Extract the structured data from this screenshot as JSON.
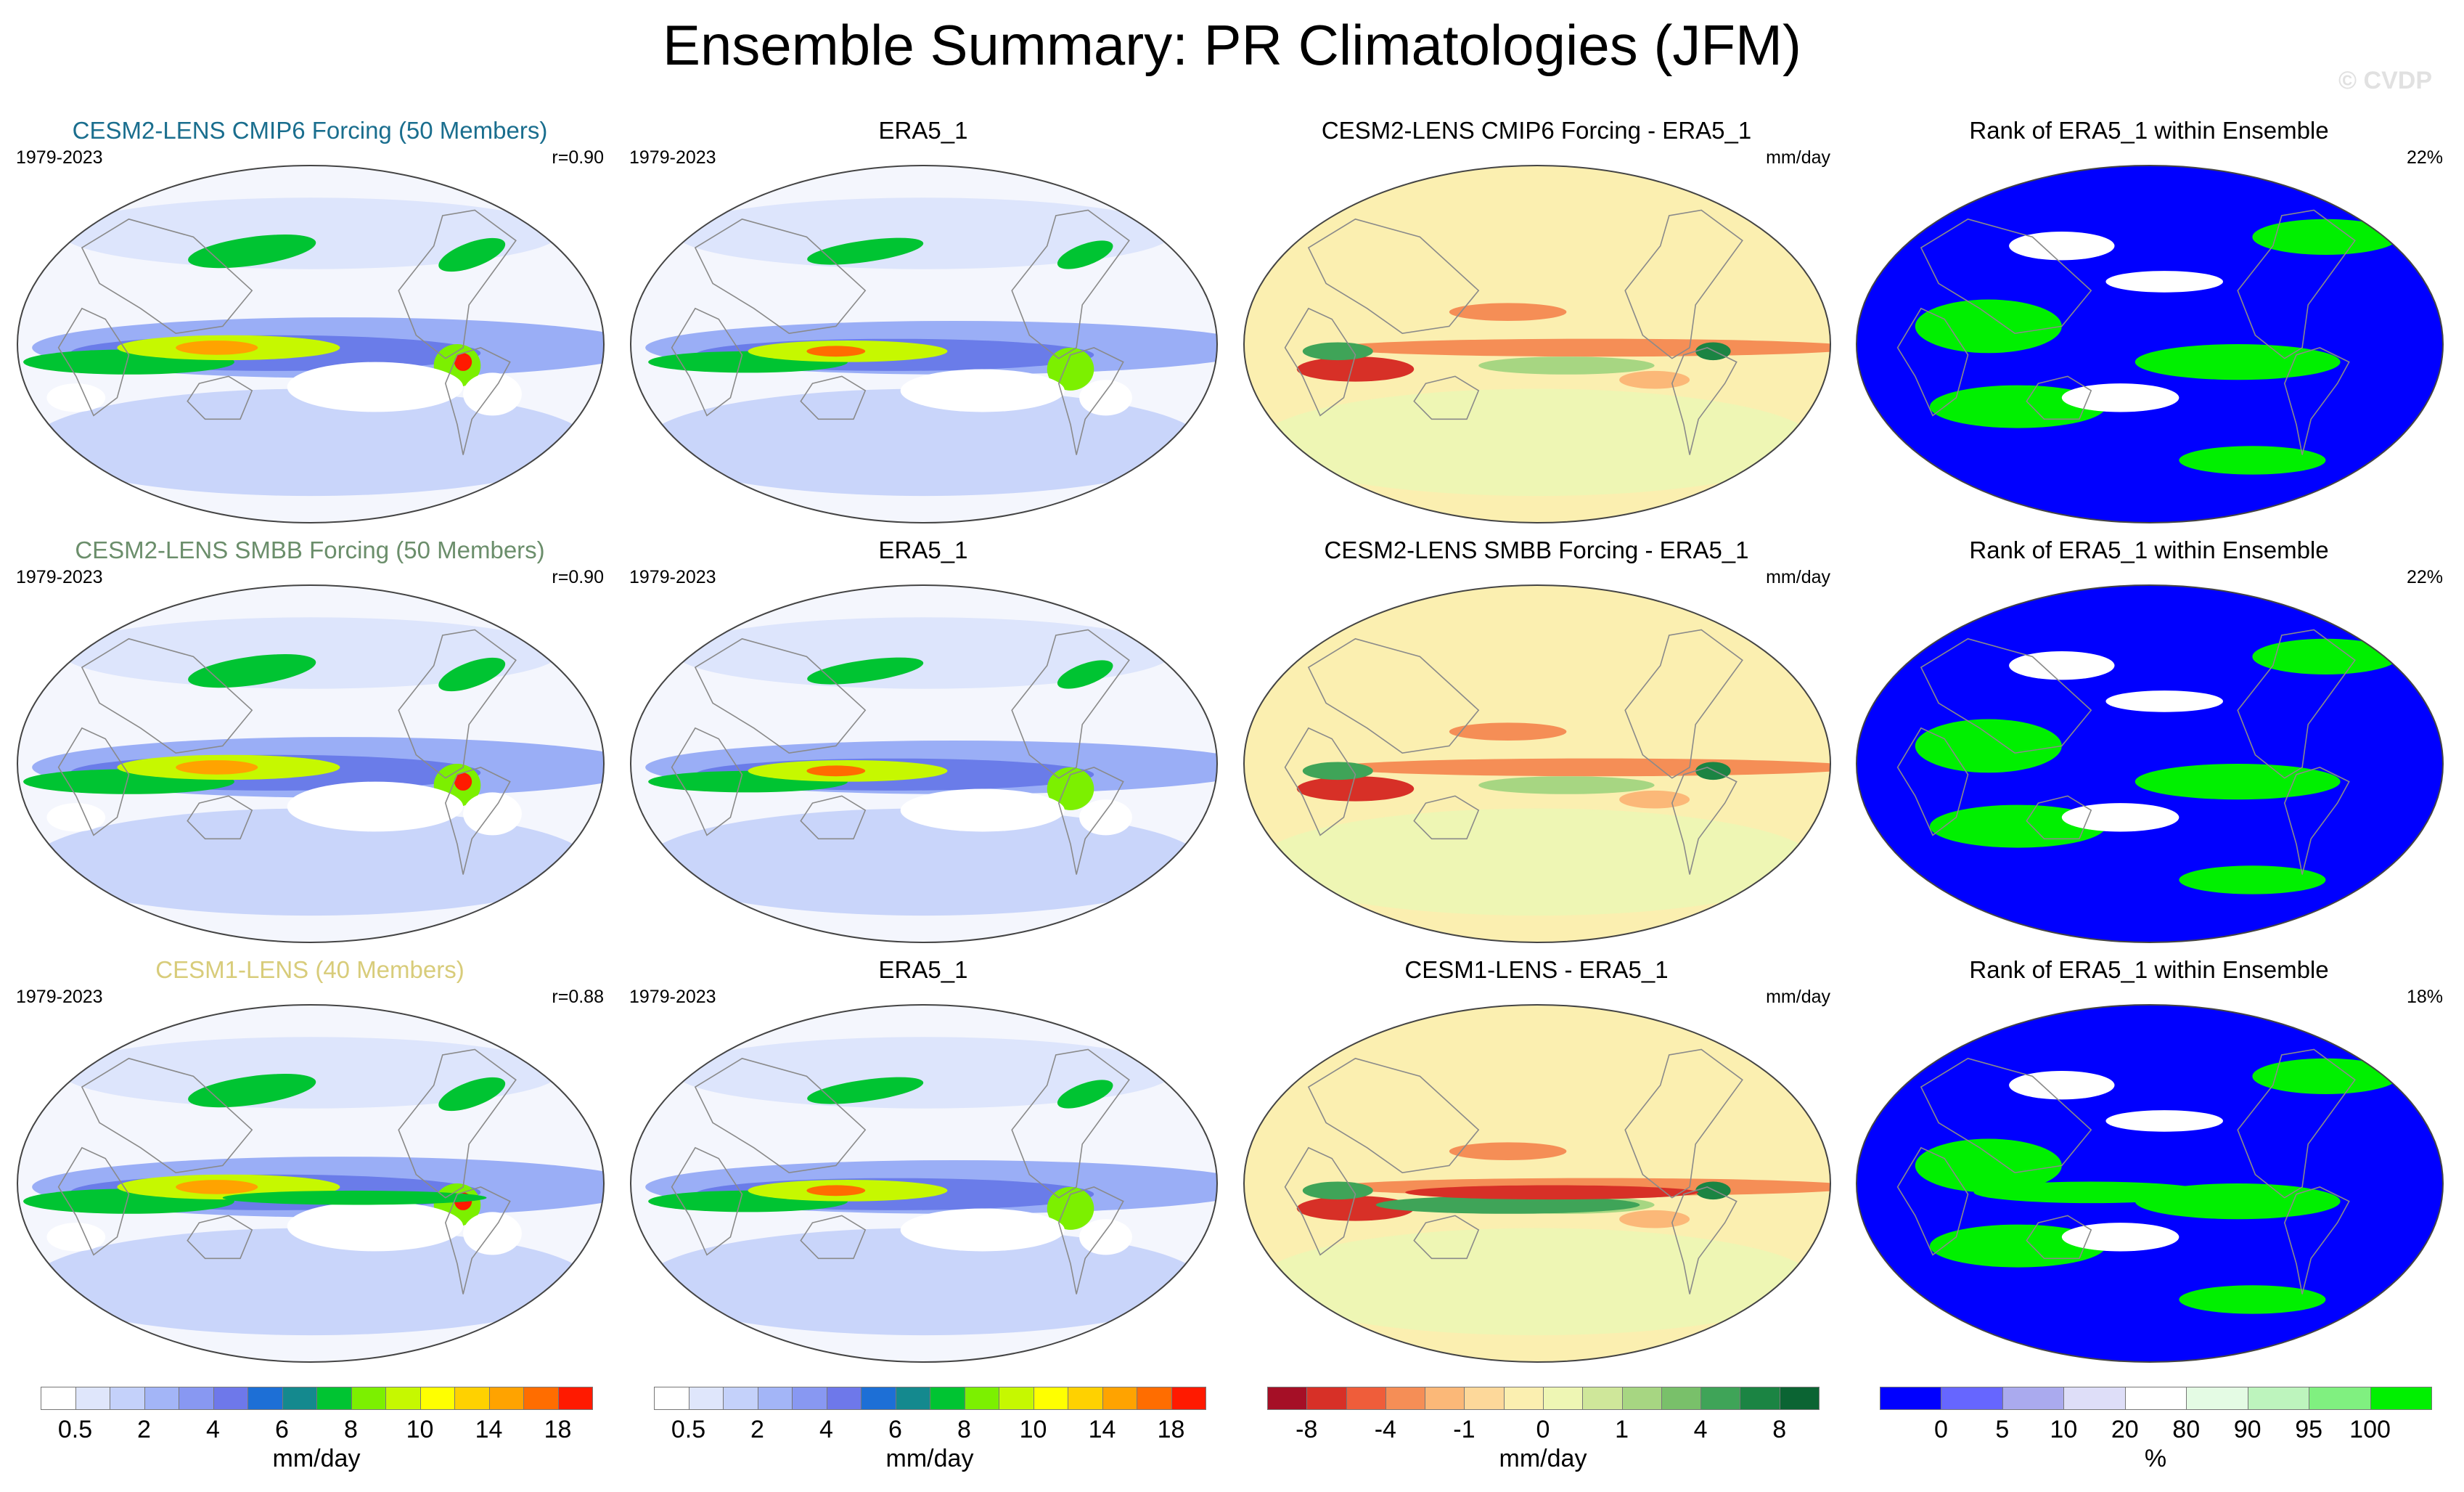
{
  "page": {
    "title": "Ensemble Summary: PR Climatologies (JFM)",
    "watermark": "© CVDP"
  },
  "chart_data": [
    {
      "type": "heatmap",
      "panel_kind": "model",
      "title": "CESM2-LENS CMIP6 Forcing (50 Members)",
      "title_color": "#1a6e8e",
      "period": "1979-2023",
      "stat": "r=0.90"
    },
    {
      "type": "heatmap",
      "panel_kind": "obs",
      "title": "ERA5_1",
      "title_color": "#000000",
      "period": "1979-2023",
      "stat": ""
    },
    {
      "type": "heatmap",
      "panel_kind": "diff",
      "title": "CESM2-LENS CMIP6 Forcing - ERA5_1",
      "title_color": "#000000",
      "period": "",
      "stat": "mm/day"
    },
    {
      "type": "heatmap",
      "panel_kind": "rank",
      "title": "Rank of ERA5_1 within Ensemble",
      "title_color": "#000000",
      "period": "",
      "stat": "22%"
    },
    {
      "type": "heatmap",
      "panel_kind": "model",
      "title": "CESM2-LENS SMBB Forcing (50 Members)",
      "title_color": "#6b8e6b",
      "period": "1979-2023",
      "stat": "r=0.90"
    },
    {
      "type": "heatmap",
      "panel_kind": "obs",
      "title": "ERA5_1",
      "title_color": "#000000",
      "period": "1979-2023",
      "stat": ""
    },
    {
      "type": "heatmap",
      "panel_kind": "diff",
      "title": "CESM2-LENS SMBB Forcing - ERA5_1",
      "title_color": "#000000",
      "period": "",
      "stat": "mm/day"
    },
    {
      "type": "heatmap",
      "panel_kind": "rank",
      "title": "Rank of ERA5_1 within Ensemble",
      "title_color": "#000000",
      "period": "",
      "stat": "22%"
    },
    {
      "type": "heatmap",
      "panel_kind": "model",
      "title": "CESM1-LENS (40 Members)",
      "title_color": "#d8cc7a",
      "period": "1979-2023",
      "stat": "r=0.88"
    },
    {
      "type": "heatmap",
      "panel_kind": "obs",
      "title": "ERA5_1",
      "title_color": "#000000",
      "period": "1979-2023",
      "stat": ""
    },
    {
      "type": "heatmap",
      "panel_kind": "diff",
      "title": "CESM1-LENS - ERA5_1",
      "title_color": "#000000",
      "period": "",
      "stat": "mm/day"
    },
    {
      "type": "heatmap",
      "panel_kind": "rank",
      "title": "Rank of ERA5_1 within Ensemble",
      "title_color": "#000000",
      "period": "",
      "stat": "18%"
    }
  ],
  "colorbars": [
    {
      "name": "precip-colorbar-1",
      "units": "mm/day",
      "colors": [
        "#ffffff",
        "#dfe6fb",
        "#c4d1fa",
        "#a3b5f7",
        "#8898f2",
        "#6e78ea",
        "#1d6fd6",
        "#14898e",
        "#00c432",
        "#7cf000",
        "#c6f800",
        "#ffff00",
        "#ffd100",
        "#ffa300",
        "#ff6d00",
        "#ff1a00"
      ],
      "tick_labels": [
        "0.5",
        "2",
        "4",
        "6",
        "8",
        "10",
        "14",
        "18"
      ],
      "tick_boundaries": [
        1,
        3,
        5,
        7,
        9,
        11,
        13,
        15
      ]
    },
    {
      "name": "precip-colorbar-2",
      "units": "mm/day",
      "colors": [
        "#ffffff",
        "#dfe6fb",
        "#c4d1fa",
        "#a3b5f7",
        "#8898f2",
        "#6e78ea",
        "#1d6fd6",
        "#14898e",
        "#00c432",
        "#7cf000",
        "#c6f800",
        "#ffff00",
        "#ffd100",
        "#ffa300",
        "#ff6d00",
        "#ff1a00"
      ],
      "tick_labels": [
        "0.5",
        "2",
        "4",
        "6",
        "8",
        "10",
        "14",
        "18"
      ],
      "tick_boundaries": [
        1,
        3,
        5,
        7,
        9,
        11,
        13,
        15
      ]
    },
    {
      "name": "diff-colorbar",
      "units": "mm/day",
      "colors": [
        "#a50f26",
        "#d73027",
        "#ef5d3a",
        "#f58e56",
        "#fbb878",
        "#fdd89a",
        "#fbefb0",
        "#eef6b4",
        "#cfe79a",
        "#a7d682",
        "#79c06a",
        "#3fa458",
        "#1b8443",
        "#0b6433"
      ],
      "tick_labels": [
        "-8",
        "-4",
        "-1",
        "0",
        "1",
        "4",
        "8"
      ],
      "tick_boundaries": [
        1,
        3,
        5,
        7,
        9,
        11,
        13
      ]
    },
    {
      "name": "rank-colorbar",
      "units": "%",
      "colors": [
        "#0000ff",
        "#6666ff",
        "#aaaaee",
        "#dedef8",
        "#ffffff",
        "#e4fbe4",
        "#bdf4bd",
        "#80f080",
        "#00f000"
      ],
      "tick_labels": [
        "0",
        "5",
        "10",
        "20",
        "80",
        "90",
        "95",
        "100"
      ],
      "tick_boundaries": [
        1,
        2,
        3,
        4,
        5,
        6,
        7,
        8
      ]
    }
  ]
}
